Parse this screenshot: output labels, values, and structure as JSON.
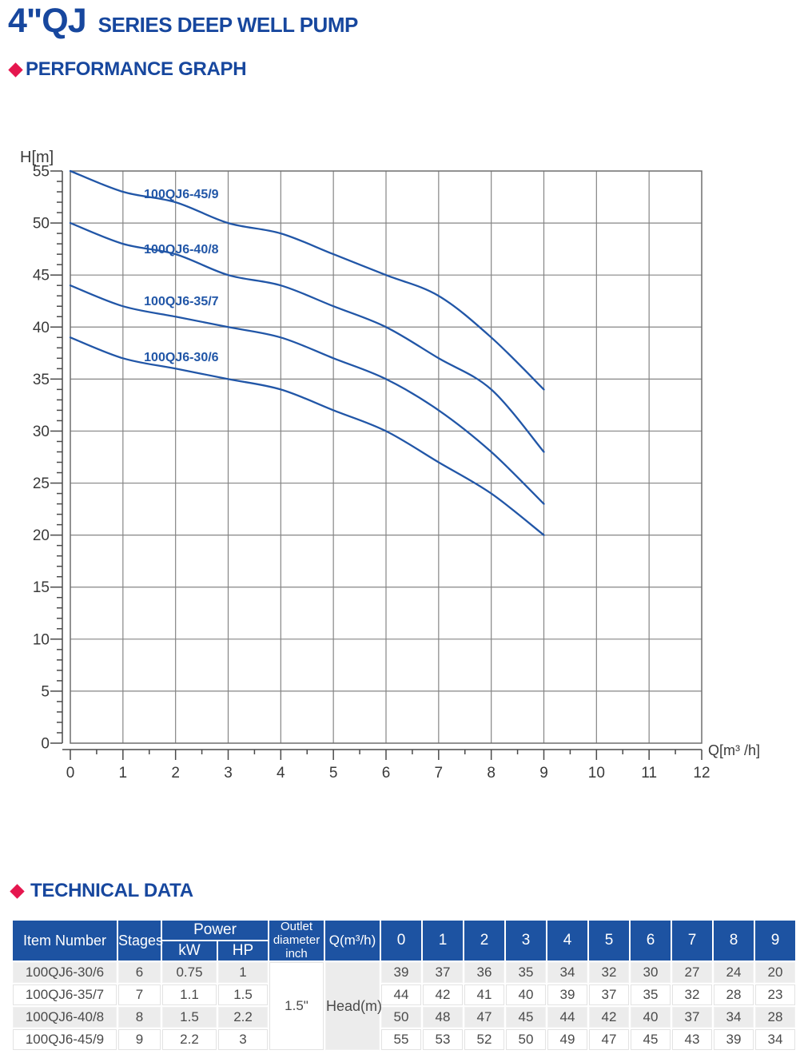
{
  "header": {
    "title_main": "4\"QJ",
    "title_sub": "SERIES DEEP WELL PUMP"
  },
  "sections": {
    "performance": "PERFORMANCE GRAPH",
    "technical": "TECHNICAL DATA"
  },
  "colors": {
    "brand_blue": "#17479E",
    "accent_red": "#E5164E",
    "curve_blue": "#2156A7",
    "grid_gray": "#858585",
    "plot_border": "#6F6F6F",
    "axis_dark": "#4A4A4A",
    "tick_label": "#3A3A3A",
    "table_header_blue": "#1D53A2",
    "row_gray": "#ECECEC"
  },
  "chart_data": {
    "type": "line",
    "title": "",
    "xlabel": "Q[m³ /h]",
    "ylabel": "H[m]",
    "xlim": [
      0,
      12
    ],
    "ylim": [
      0,
      55
    ],
    "x_tick_step": 1,
    "x_minor_step": 0.5,
    "y_tick_step": 5,
    "y_minor_step": 1,
    "grid": true,
    "legend_position": "inline-labels",
    "x_ticks": [
      "0",
      "1",
      "2",
      "3",
      "4",
      "5",
      "6",
      "7",
      "8",
      "9",
      "10",
      "11",
      "12"
    ],
    "y_ticks": [
      "0",
      "5",
      "10",
      "15",
      "20",
      "25",
      "30",
      "35",
      "40",
      "45",
      "50",
      "55"
    ],
    "x": [
      0,
      1,
      2,
      3,
      4,
      5,
      6,
      7,
      8,
      9
    ],
    "series": [
      {
        "name": "100QJ6-45/9",
        "values": [
          55,
          53,
          52,
          50,
          49,
          47,
          45,
          43,
          39,
          34
        ],
        "label_pos": [
          1.4,
          52.4
        ]
      },
      {
        "name": "100QJ6-40/8",
        "values": [
          50,
          48,
          47,
          45,
          44,
          42,
          40,
          37,
          34,
          28
        ],
        "label_pos": [
          1.4,
          47.1
        ]
      },
      {
        "name": "100QJ6-35/7",
        "values": [
          44,
          42,
          41,
          40,
          39,
          37,
          35,
          32,
          28,
          23
        ],
        "label_pos": [
          1.4,
          42.1
        ]
      },
      {
        "name": "100QJ6-30/6",
        "values": [
          39,
          37,
          36,
          35,
          34,
          32,
          30,
          27,
          24,
          20
        ],
        "label_pos": [
          1.4,
          36.7
        ]
      }
    ]
  },
  "table": {
    "col_headers": {
      "item_number": "Item Number",
      "stages": "Stages",
      "power": "Power",
      "kw": "kW",
      "hp": "HP",
      "outlet": "Outlet diameter inch",
      "q_flow": "Q(m³/h)"
    },
    "q_values": [
      "0",
      "1",
      "2",
      "3",
      "4",
      "5",
      "6",
      "7",
      "8",
      "9"
    ],
    "outlet_diameter": "1.5\"",
    "head_row_label": "Head(m)",
    "rows": [
      {
        "item": "100QJ6-30/6",
        "stages": "6",
        "kw": "0.75",
        "hp": "1",
        "head": [
          "39",
          "37",
          "36",
          "35",
          "34",
          "32",
          "30",
          "27",
          "24",
          "20"
        ]
      },
      {
        "item": "100QJ6-35/7",
        "stages": "7",
        "kw": "1.1",
        "hp": "1.5",
        "head": [
          "44",
          "42",
          "41",
          "40",
          "39",
          "37",
          "35",
          "32",
          "28",
          "23"
        ]
      },
      {
        "item": "100QJ6-40/8",
        "stages": "8",
        "kw": "1.5",
        "hp": "2.2",
        "head": [
          "50",
          "48",
          "47",
          "45",
          "44",
          "42",
          "40",
          "37",
          "34",
          "28"
        ]
      },
      {
        "item": "100QJ6-45/9",
        "stages": "9",
        "kw": "2.2",
        "hp": "3",
        "head": [
          "55",
          "53",
          "52",
          "50",
          "49",
          "47",
          "45",
          "43",
          "39",
          "34"
        ]
      }
    ]
  }
}
